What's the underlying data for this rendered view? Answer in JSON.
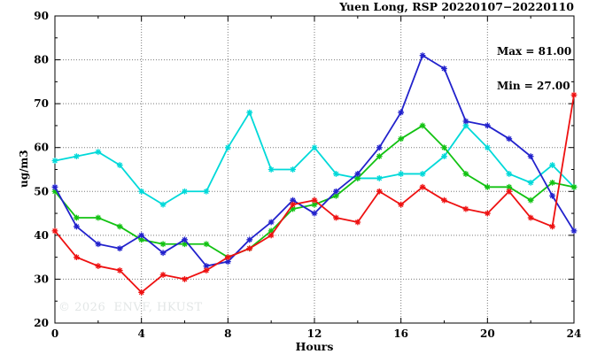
{
  "figure": {
    "title": "Yuen Long, RSP 20220107−20220110",
    "stats": {
      "max_label": "Max = 81.00",
      "min_label": "Min = 27.00"
    },
    "watermark": "© 2026  ENVF, HKUST"
  },
  "chart_data": {
    "type": "line",
    "title": "Yuen Long, RSP 20220107−20220110",
    "xlabel": "Hours",
    "ylabel": "ug/m3",
    "xlim": [
      0,
      24
    ],
    "ylim": [
      20,
      90
    ],
    "xticks_major": [
      0,
      4,
      8,
      12,
      16,
      20,
      24
    ],
    "xticks_minor": [
      2,
      6,
      10,
      14,
      18,
      22
    ],
    "yticks_major": [
      20,
      30,
      40,
      50,
      60,
      70,
      80,
      90
    ],
    "yticks_minor": [
      25,
      35,
      45,
      55,
      65,
      75,
      85
    ],
    "grid": true,
    "legend": "none",
    "marker": "asterisk",
    "stat_max": 81.0,
    "stat_min": 27.0,
    "axis_color": "#000000",
    "grid_color": "#7a7a7a",
    "x": [
      0,
      1,
      2,
      3,
      4,
      5,
      6,
      7,
      8,
      9,
      10,
      11,
      12,
      13,
      14,
      15,
      16,
      17,
      18,
      19,
      20,
      21,
      22,
      23,
      24
    ],
    "series": [
      {
        "name": "series-cyan",
        "color": "#00d9d9",
        "values": [
          57,
          58,
          59,
          56,
          50,
          47,
          50,
          50,
          60,
          68,
          55,
          55,
          60,
          54,
          53,
          53,
          54,
          54,
          58,
          65,
          60,
          54,
          52,
          56,
          51
        ]
      },
      {
        "name": "series-green",
        "color": "#12c212",
        "values": [
          50,
          44,
          44,
          42,
          39,
          38,
          38,
          38,
          35,
          37,
          41,
          46,
          47,
          49,
          53,
          58,
          62,
          65,
          60,
          54,
          51,
          51,
          48,
          52,
          51
        ]
      },
      {
        "name": "series-blue",
        "color": "#2222cc",
        "values": [
          51,
          42,
          38,
          37,
          40,
          36,
          39,
          33,
          34,
          39,
          43,
          48,
          45,
          50,
          54,
          60,
          68,
          81,
          78,
          66,
          65,
          62,
          58,
          49,
          41
        ]
      },
      {
        "name": "series-red",
        "color": "#ee1111",
        "values": [
          41,
          35,
          33,
          32,
          27,
          31,
          30,
          32,
          35,
          37,
          40,
          47,
          48,
          44,
          43,
          50,
          47,
          51,
          48,
          46,
          45,
          50,
          44,
          42,
          72
        ]
      }
    ]
  }
}
